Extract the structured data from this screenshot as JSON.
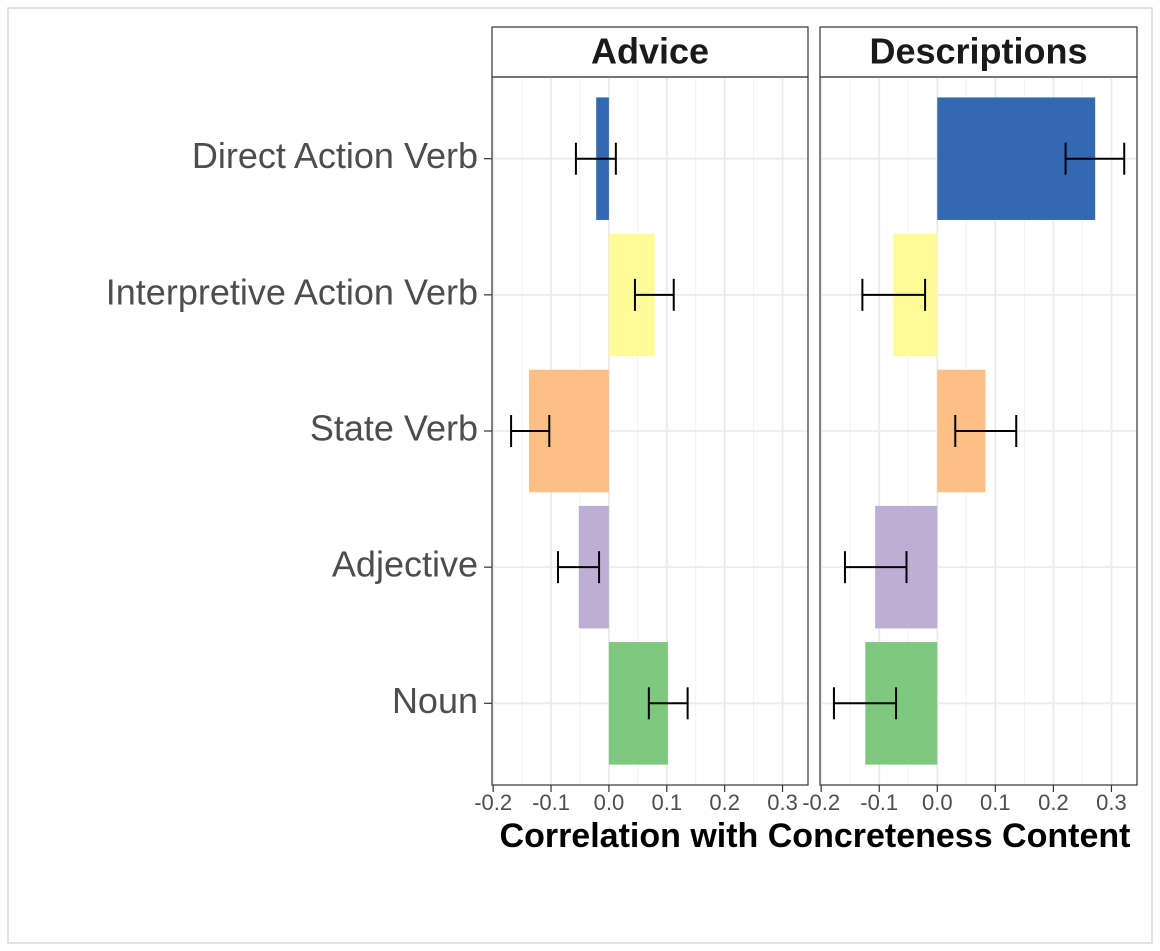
{
  "chart_data": {
    "type": "bar",
    "orientation": "horizontal",
    "categories": [
      "Direct Action Verb",
      "Interpretive Action Verb",
      "State Verb",
      "Adjective",
      "Noun"
    ],
    "colors": [
      "#3269b0",
      "#fdfc98",
      "#fcbf85",
      "#beaed4",
      "#7fc97f"
    ],
    "xlabel": "Correlation with Concreteness Content",
    "xlim": [
      -0.202,
      0.344
    ],
    "xticks": [
      -0.2,
      -0.1,
      {
        "value": 0,
        "label": "0.0"
      },
      0.1,
      0.2,
      0.3
    ],
    "grid": true,
    "facets": [
      {
        "title": "Advice",
        "values": [
          -0.022,
          0.079,
          -0.138,
          -0.052,
          0.102
        ],
        "lower": [
          -0.057,
          0.045,
          -0.169,
          -0.088,
          0.069
        ],
        "upper": [
          0.012,
          0.112,
          -0.103,
          -0.017,
          0.136
        ]
      },
      {
        "title": "Descriptions",
        "values": [
          0.272,
          -0.076,
          0.083,
          -0.107,
          -0.124
        ],
        "lower": [
          0.221,
          -0.129,
          0.031,
          -0.159,
          -0.178
        ],
        "upper": [
          0.322,
          -0.021,
          0.136,
          -0.053,
          -0.071
        ]
      }
    ]
  }
}
